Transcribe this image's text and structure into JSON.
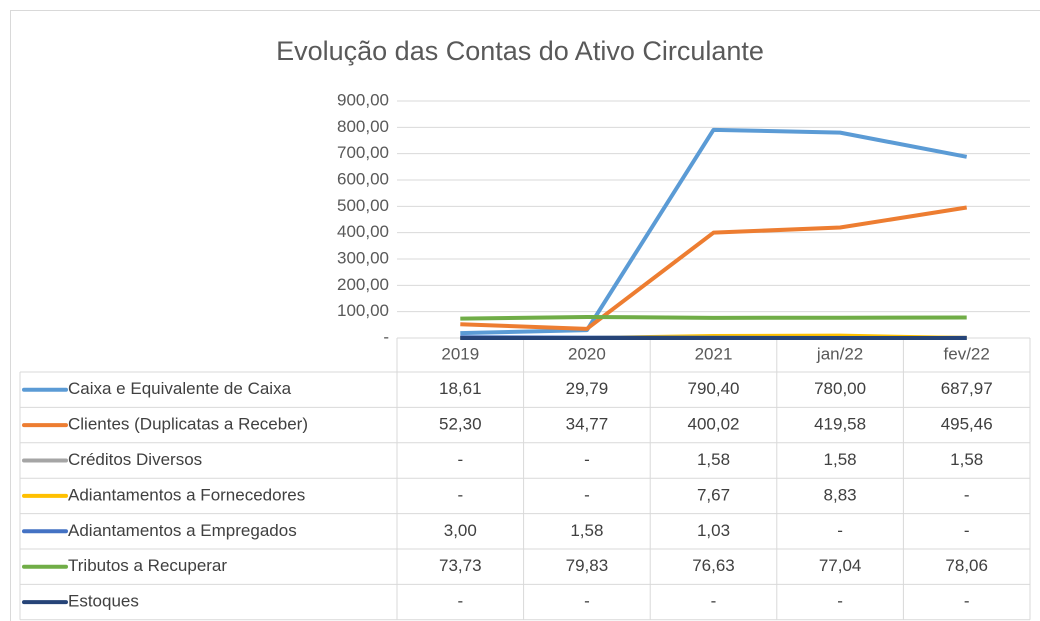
{
  "chart_data": {
    "type": "line",
    "title": "Evolução das Contas do Ativo Circulante",
    "categories": [
      "2019",
      "2020",
      "2021",
      "jan/22",
      "fev/22"
    ],
    "ylim": [
      0,
      900
    ],
    "yticks": [
      {
        "value": 0,
        "label": "-"
      },
      {
        "value": 100,
        "label": "100,00"
      },
      {
        "value": 200,
        "label": "200,00"
      },
      {
        "value": 300,
        "label": "300,00"
      },
      {
        "value": 400,
        "label": "400,00"
      },
      {
        "value": 500,
        "label": "500,00"
      },
      {
        "value": 600,
        "label": "600,00"
      },
      {
        "value": 700,
        "label": "700,00"
      },
      {
        "value": 800,
        "label": "800,00"
      },
      {
        "value": 900,
        "label": "900,00"
      }
    ],
    "grid": true,
    "series": [
      {
        "name": "Caixa e Equivalente de Caixa",
        "color": "#5b9bd5",
        "values": [
          18.61,
          29.79,
          790.4,
          780.0,
          687.97
        ],
        "value_labels": [
          "18,61",
          "29,79",
          "790,40",
          "780,00",
          "687,97"
        ]
      },
      {
        "name": "Clientes (Duplicatas a Receber)",
        "color": "#ed7d31",
        "values": [
          52.3,
          34.77,
          400.02,
          419.58,
          495.46
        ],
        "value_labels": [
          "52,30",
          "34,77",
          "400,02",
          "419,58",
          "495,46"
        ]
      },
      {
        "name": "Créditos Diversos",
        "color": "#a5a5a5",
        "values": [
          0,
          0,
          1.58,
          1.58,
          1.58
        ],
        "value_labels": [
          "-",
          "-",
          "1,58",
          "1,58",
          "1,58"
        ]
      },
      {
        "name": "Adiantamentos a Fornecedores",
        "color": "#ffc000",
        "values": [
          0,
          0,
          7.67,
          8.83,
          0
        ],
        "value_labels": [
          "-",
          "-",
          "7,67",
          "8,83",
          "-"
        ]
      },
      {
        "name": "Adiantamentos a Empregados",
        "color": "#4472c4",
        "values": [
          3.0,
          1.58,
          1.03,
          0,
          0
        ],
        "value_labels": [
          "3,00",
          "1,58",
          "1,03",
          "-",
          "-"
        ]
      },
      {
        "name": "Tributos a Recuperar",
        "color": "#70ad47",
        "values": [
          73.73,
          79.83,
          76.63,
          77.04,
          78.06
        ],
        "value_labels": [
          "73,73",
          "79,83",
          "76,63",
          "77,04",
          "78,06"
        ]
      },
      {
        "name": "Estoques",
        "color": "#264478",
        "values": [
          0,
          0,
          0,
          0,
          0
        ],
        "value_labels": [
          "-",
          "-",
          "-",
          "-",
          "-"
        ]
      }
    ]
  }
}
